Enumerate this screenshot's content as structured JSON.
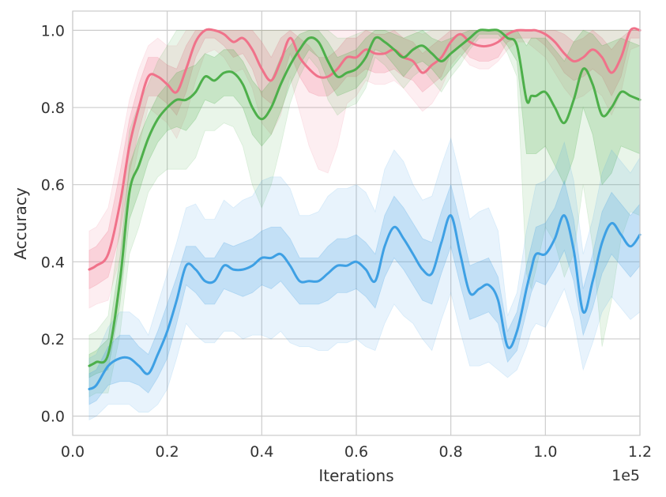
{
  "chart_data": {
    "type": "line",
    "xlabel": "Iterations",
    "ylabel": "Accuracy",
    "x_offset_text": "1e5",
    "xlim": [
      0,
      1.2
    ],
    "ylim": [
      -0.05,
      1.05
    ],
    "x_ticks": [
      0.0,
      0.2,
      0.4,
      0.6,
      0.8,
      1.0,
      1.2
    ],
    "x_tick_labels": [
      "0.0",
      "0.2",
      "0.4",
      "0.6",
      "0.8",
      "1.0",
      "1.2"
    ],
    "y_ticks": [
      0.0,
      0.2,
      0.4,
      0.6,
      0.8,
      1.0
    ],
    "y_tick_labels": [
      "0.0",
      "0.2",
      "0.4",
      "0.6",
      "0.8",
      "1.0"
    ],
    "grid": true,
    "x": [
      0.035,
      0.05,
      0.075,
      0.1,
      0.12,
      0.14,
      0.16,
      0.18,
      0.2,
      0.22,
      0.24,
      0.26,
      0.28,
      0.3,
      0.32,
      0.34,
      0.36,
      0.38,
      0.4,
      0.42,
      0.44,
      0.46,
      0.48,
      0.5,
      0.52,
      0.54,
      0.56,
      0.58,
      0.6,
      0.62,
      0.64,
      0.66,
      0.68,
      0.7,
      0.72,
      0.74,
      0.76,
      0.78,
      0.8,
      0.82,
      0.84,
      0.86,
      0.88,
      0.9,
      0.92,
      0.94,
      0.96,
      0.97,
      0.98,
      1.0,
      1.02,
      1.04,
      1.06,
      1.08,
      1.1,
      1.12,
      1.14,
      1.16,
      1.18,
      1.2
    ],
    "series": [
      {
        "color": "#f0728a",
        "values": [
          0.38,
          0.39,
          0.42,
          0.55,
          0.7,
          0.8,
          0.88,
          0.88,
          0.86,
          0.84,
          0.9,
          0.97,
          1.0,
          1.0,
          0.99,
          0.97,
          0.98,
          0.95,
          0.9,
          0.87,
          0.92,
          0.98,
          0.93,
          0.9,
          0.88,
          0.88,
          0.9,
          0.93,
          0.93,
          0.95,
          0.94,
          0.94,
          0.95,
          0.93,
          0.92,
          0.89,
          0.91,
          0.93,
          0.97,
          0.99,
          0.97,
          0.96,
          0.96,
          0.97,
          0.99,
          1.0,
          1.0,
          1.0,
          1.0,
          0.99,
          0.97,
          0.94,
          0.92,
          0.93,
          0.95,
          0.93,
          0.89,
          0.93,
          1.0,
          1.0
        ],
        "band_inner": [
          0.05,
          0.05,
          0.06,
          0.08,
          0.07,
          0.06,
          0.05,
          0.05,
          0.05,
          0.06,
          0.06,
          0.04,
          0.02,
          0.02,
          0.03,
          0.04,
          0.04,
          0.05,
          0.07,
          0.06,
          0.06,
          0.04,
          0.05,
          0.06,
          0.05,
          0.05,
          0.05,
          0.05,
          0.05,
          0.05,
          0.05,
          0.05,
          0.05,
          0.05,
          0.05,
          0.05,
          0.05,
          0.05,
          0.03,
          0.03,
          0.04,
          0.04,
          0.04,
          0.04,
          0.02,
          0.02,
          0.02,
          0.02,
          0.02,
          0.03,
          0.04,
          0.05,
          0.05,
          0.05,
          0.05,
          0.05,
          0.06,
          0.05,
          0.02,
          0.02
        ],
        "band_outer": [
          0.1,
          0.1,
          0.12,
          0.14,
          0.12,
          0.1,
          0.08,
          0.1,
          0.1,
          0.12,
          0.12,
          0.1,
          0.06,
          0.05,
          0.06,
          0.08,
          0.08,
          0.1,
          0.14,
          0.14,
          0.14,
          0.1,
          0.14,
          0.2,
          0.24,
          0.25,
          0.2,
          0.12,
          0.1,
          0.08,
          0.08,
          0.08,
          0.08,
          0.08,
          0.1,
          0.1,
          0.1,
          0.08,
          0.06,
          0.05,
          0.06,
          0.06,
          0.06,
          0.05,
          0.04,
          0.03,
          0.03,
          0.04,
          0.05,
          0.06,
          0.08,
          0.09,
          0.1,
          0.1,
          0.1,
          0.1,
          0.11,
          0.09,
          0.05,
          0.04
        ]
      },
      {
        "color": "#4daf4a",
        "values": [
          0.13,
          0.14,
          0.16,
          0.35,
          0.58,
          0.65,
          0.72,
          0.77,
          0.8,
          0.82,
          0.82,
          0.84,
          0.88,
          0.87,
          0.89,
          0.89,
          0.86,
          0.8,
          0.77,
          0.8,
          0.86,
          0.91,
          0.95,
          0.98,
          0.97,
          0.92,
          0.88,
          0.89,
          0.9,
          0.93,
          0.98,
          0.97,
          0.95,
          0.93,
          0.95,
          0.96,
          0.94,
          0.92,
          0.94,
          0.96,
          0.98,
          1.0,
          1.0,
          1.0,
          0.98,
          0.96,
          0.82,
          0.83,
          0.83,
          0.84,
          0.8,
          0.76,
          0.82,
          0.9,
          0.86,
          0.78,
          0.8,
          0.84,
          0.83,
          0.82
        ],
        "band_inner": [
          0.03,
          0.03,
          0.04,
          0.06,
          0.07,
          0.07,
          0.06,
          0.06,
          0.06,
          0.07,
          0.08,
          0.07,
          0.06,
          0.06,
          0.06,
          0.06,
          0.06,
          0.07,
          0.07,
          0.07,
          0.07,
          0.05,
          0.04,
          0.03,
          0.04,
          0.05,
          0.05,
          0.05,
          0.05,
          0.05,
          0.03,
          0.03,
          0.04,
          0.05,
          0.04,
          0.04,
          0.04,
          0.05,
          0.04,
          0.03,
          0.02,
          0.01,
          0.01,
          0.01,
          0.02,
          0.04,
          0.14,
          0.15,
          0.15,
          0.14,
          0.15,
          0.16,
          0.15,
          0.1,
          0.13,
          0.18,
          0.17,
          0.14,
          0.14,
          0.14
        ],
        "band_outer": [
          0.08,
          0.08,
          0.1,
          0.14,
          0.16,
          0.16,
          0.14,
          0.15,
          0.16,
          0.18,
          0.18,
          0.17,
          0.14,
          0.13,
          0.13,
          0.14,
          0.16,
          0.2,
          0.23,
          0.2,
          0.16,
          0.1,
          0.07,
          0.05,
          0.07,
          0.1,
          0.1,
          0.09,
          0.09,
          0.08,
          0.05,
          0.06,
          0.07,
          0.08,
          0.07,
          0.06,
          0.07,
          0.08,
          0.06,
          0.05,
          0.03,
          0.02,
          0.02,
          0.02,
          0.04,
          0.08,
          0.45,
          0.5,
          0.45,
          0.35,
          0.35,
          0.4,
          0.4,
          0.3,
          0.42,
          0.6,
          0.5,
          0.38,
          0.3,
          0.3
        ]
      },
      {
        "color": "#3ea0e4",
        "values": [
          0.07,
          0.08,
          0.13,
          0.15,
          0.15,
          0.13,
          0.11,
          0.16,
          0.22,
          0.3,
          0.39,
          0.38,
          0.35,
          0.35,
          0.39,
          0.38,
          0.38,
          0.39,
          0.41,
          0.41,
          0.42,
          0.39,
          0.35,
          0.35,
          0.35,
          0.37,
          0.39,
          0.39,
          0.4,
          0.38,
          0.35,
          0.44,
          0.49,
          0.46,
          0.42,
          0.38,
          0.37,
          0.45,
          0.52,
          0.42,
          0.32,
          0.33,
          0.34,
          0.3,
          0.18,
          0.22,
          0.33,
          0.38,
          0.42,
          0.42,
          0.46,
          0.52,
          0.43,
          0.27,
          0.35,
          0.45,
          0.5,
          0.47,
          0.44,
          0.47
        ],
        "band_inner": [
          0.04,
          0.04,
          0.05,
          0.06,
          0.06,
          0.05,
          0.05,
          0.06,
          0.07,
          0.06,
          0.05,
          0.06,
          0.06,
          0.06,
          0.06,
          0.06,
          0.07,
          0.07,
          0.07,
          0.08,
          0.07,
          0.07,
          0.06,
          0.06,
          0.06,
          0.07,
          0.07,
          0.07,
          0.07,
          0.07,
          0.07,
          0.08,
          0.08,
          0.08,
          0.08,
          0.08,
          0.08,
          0.08,
          0.08,
          0.08,
          0.07,
          0.07,
          0.07,
          0.06,
          0.04,
          0.05,
          0.06,
          0.06,
          0.07,
          0.08,
          0.08,
          0.09,
          0.08,
          0.06,
          0.07,
          0.08,
          0.08,
          0.08,
          0.08,
          0.08
        ],
        "band_outer": [
          0.08,
          0.08,
          0.1,
          0.12,
          0.12,
          0.12,
          0.1,
          0.13,
          0.15,
          0.15,
          0.15,
          0.17,
          0.16,
          0.16,
          0.17,
          0.16,
          0.18,
          0.18,
          0.2,
          0.21,
          0.2,
          0.2,
          0.17,
          0.17,
          0.18,
          0.2,
          0.2,
          0.2,
          0.2,
          0.2,
          0.18,
          0.2,
          0.2,
          0.2,
          0.18,
          0.18,
          0.2,
          0.2,
          0.2,
          0.2,
          0.19,
          0.2,
          0.2,
          0.18,
          0.08,
          0.1,
          0.15,
          0.16,
          0.18,
          0.19,
          0.18,
          0.19,
          0.18,
          0.15,
          0.16,
          0.18,
          0.19,
          0.19,
          0.19,
          0.2
        ]
      }
    ]
  }
}
